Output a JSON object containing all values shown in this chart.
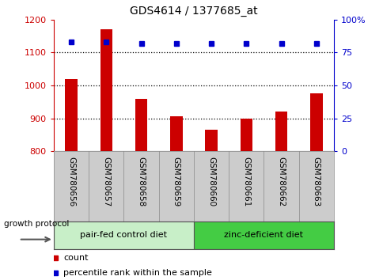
{
  "title": "GDS4614 / 1377685_at",
  "samples": [
    "GSM780656",
    "GSM780657",
    "GSM780658",
    "GSM780659",
    "GSM780660",
    "GSM780661",
    "GSM780662",
    "GSM780663"
  ],
  "counts": [
    1020,
    1170,
    960,
    905,
    865,
    900,
    920,
    975
  ],
  "percentiles": [
    83,
    83,
    82,
    82,
    82,
    82,
    82,
    82
  ],
  "ylim_left": [
    800,
    1200
  ],
  "ylim_right": [
    0,
    100
  ],
  "yticks_left": [
    800,
    900,
    1000,
    1100,
    1200
  ],
  "yticks_right": [
    0,
    25,
    50,
    75,
    100
  ],
  "ytick_labels_right": [
    "0",
    "25",
    "50",
    "75",
    "100%"
  ],
  "bar_color": "#cc0000",
  "percentile_color": "#0000cc",
  "group1_label": "pair-fed control diet",
  "group2_label": "zinc-deficient diet",
  "group1_indices": [
    0,
    1,
    2,
    3
  ],
  "group2_indices": [
    4,
    5,
    6,
    7
  ],
  "group1_bg_color": "#c8efc8",
  "group2_bg_color": "#44cc44",
  "xlabel_area_color": "#cccccc",
  "growth_protocol_label": "growth protocol",
  "legend_count_label": "count",
  "legend_percentile_label": "percentile rank within the sample",
  "dotted_line_color": "#000000",
  "background_color": "#ffffff",
  "bar_width": 0.35
}
